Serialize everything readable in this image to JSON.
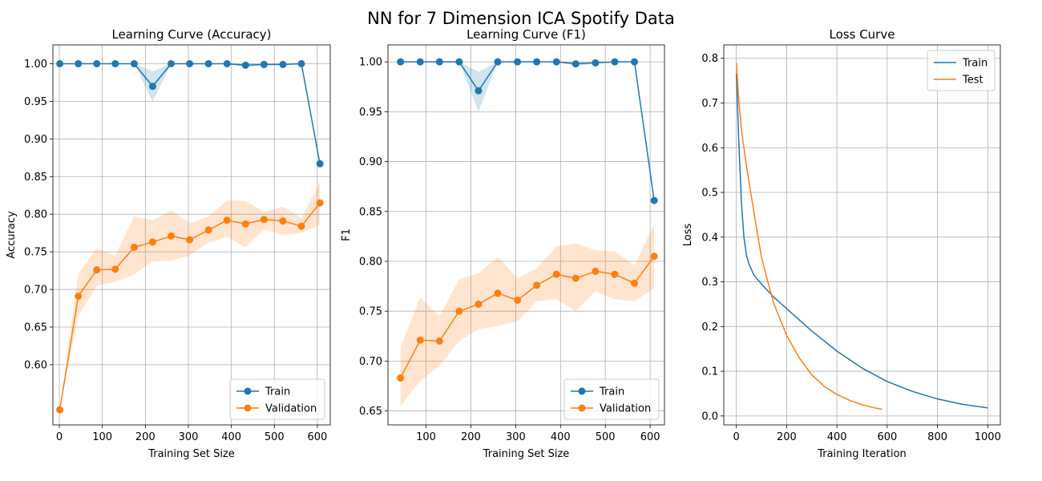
{
  "figure": {
    "suptitle": "NN for 7 Dimension ICA Spotify Data"
  },
  "colors": {
    "train": "#1f77b4",
    "validation": "#ff7f0e",
    "grid": "#b0b0b0"
  },
  "chart_data": [
    {
      "type": "line",
      "title": "Learning Curve (Accuracy)",
      "xlabel": "Training Set Size",
      "ylabel": "Accuracy",
      "xlim": [
        -15,
        630
      ],
      "ylim": [
        0.52,
        1.025
      ],
      "xticks": [
        0,
        100,
        200,
        300,
        400,
        500,
        600
      ],
      "yticks": [
        0.6,
        0.65,
        0.7,
        0.75,
        0.8,
        0.85,
        0.9,
        0.95,
        1.0
      ],
      "ytick_labels": [
        "0.60",
        "0.65",
        "0.70",
        "0.75",
        "0.80",
        "0.85",
        "0.90",
        "0.95",
        "1.00"
      ],
      "grid": true,
      "legend_position": "lower-right",
      "x": [
        1,
        44,
        87,
        130,
        174,
        217,
        260,
        303,
        347,
        390,
        433,
        476,
        520,
        563,
        606
      ],
      "series": [
        {
          "name": "Train",
          "color": "#1f77b4",
          "marker": "circle",
          "values": [
            1.0,
            1.0,
            1.0,
            1.0,
            1.0,
            0.97,
            1.0,
            1.0,
            1.0,
            1.0,
            0.998,
            0.999,
            0.999,
            1.0,
            0.867
          ],
          "lower": [
            1.0,
            1.0,
            1.0,
            1.0,
            1.0,
            0.95,
            1.0,
            1.0,
            1.0,
            1.0,
            0.996,
            0.998,
            0.998,
            1.0,
            0.867
          ],
          "upper": [
            1.0,
            1.0,
            1.0,
            1.0,
            1.0,
            0.99,
            1.0,
            1.0,
            1.0,
            1.0,
            1.0,
            1.0,
            1.0,
            1.0,
            0.867
          ]
        },
        {
          "name": "Validation",
          "color": "#ff7f0e",
          "marker": "circle",
          "values": [
            0.54,
            0.691,
            0.726,
            0.727,
            0.756,
            0.763,
            0.771,
            0.766,
            0.779,
            0.792,
            0.787,
            0.793,
            0.791,
            0.784,
            0.815
          ],
          "lower": [
            0.54,
            0.665,
            0.705,
            0.71,
            0.72,
            0.737,
            0.738,
            0.745,
            0.762,
            0.77,
            0.756,
            0.78,
            0.772,
            0.775,
            0.786
          ],
          "upper": [
            0.54,
            0.72,
            0.755,
            0.745,
            0.797,
            0.792,
            0.805,
            0.788,
            0.797,
            0.818,
            0.818,
            0.803,
            0.81,
            0.795,
            0.843
          ]
        }
      ]
    },
    {
      "type": "line",
      "title": "Learning Curve (F1)",
      "xlabel": "Training Set Size",
      "ylabel": "F1",
      "xlim": [
        15,
        632
      ],
      "ylim": [
        0.636,
        1.017
      ],
      "xticks": [
        100,
        200,
        300,
        400,
        500,
        600
      ],
      "yticks": [
        0.65,
        0.7,
        0.75,
        0.8,
        0.85,
        0.9,
        0.95,
        1.0
      ],
      "ytick_labels": [
        "0.65",
        "0.70",
        "0.75",
        "0.80",
        "0.85",
        "0.90",
        "0.95",
        "1.00"
      ],
      "grid": true,
      "legend_position": "lower-right",
      "x": [
        43,
        87,
        130,
        174,
        217,
        260,
        304,
        347,
        391,
        434,
        478,
        521,
        565,
        609
      ],
      "series": [
        {
          "name": "Train",
          "color": "#1f77b4",
          "marker": "circle",
          "values": [
            1.0,
            1.0,
            1.0,
            1.0,
            0.971,
            1.0,
            1.0,
            1.0,
            1.0,
            0.998,
            0.999,
            1.0,
            1.0,
            0.861
          ],
          "lower": [
            1.0,
            1.0,
            1.0,
            1.0,
            0.95,
            1.0,
            1.0,
            1.0,
            1.0,
            0.996,
            0.998,
            1.0,
            1.0,
            0.861
          ],
          "upper": [
            1.0,
            1.0,
            1.0,
            1.0,
            0.99,
            1.0,
            1.0,
            1.0,
            1.0,
            1.0,
            1.0,
            1.0,
            1.0,
            0.861
          ]
        },
        {
          "name": "Validation",
          "color": "#ff7f0e",
          "marker": "circle",
          "values": [
            0.683,
            0.721,
            0.72,
            0.75,
            0.757,
            0.768,
            0.761,
            0.776,
            0.787,
            0.783,
            0.79,
            0.787,
            0.778,
            0.805
          ],
          "lower": [
            0.655,
            0.68,
            0.695,
            0.72,
            0.732,
            0.735,
            0.74,
            0.76,
            0.762,
            0.75,
            0.77,
            0.762,
            0.76,
            0.773
          ],
          "upper": [
            0.714,
            0.764,
            0.745,
            0.782,
            0.788,
            0.804,
            0.783,
            0.793,
            0.815,
            0.818,
            0.811,
            0.81,
            0.796,
            0.837
          ]
        }
      ]
    },
    {
      "type": "line",
      "title": "Loss Curve",
      "xlabel": "Training Iteration",
      "ylabel": "Loss",
      "xlim": [
        -50,
        1050
      ],
      "ylim": [
        -0.02,
        0.83
      ],
      "xticks": [
        0,
        200,
        400,
        600,
        800,
        1000
      ],
      "yticks": [
        0.0,
        0.1,
        0.2,
        0.3,
        0.4,
        0.5,
        0.6,
        0.7,
        0.8
      ],
      "ytick_labels": [
        "0.0",
        "0.1",
        "0.2",
        "0.3",
        "0.4",
        "0.5",
        "0.6",
        "0.7",
        "0.8"
      ],
      "grid": true,
      "legend_position": "upper-right",
      "series": [
        {
          "name": "Train",
          "color": "#1f77b4",
          "marker": "none",
          "x": [
            0,
            10,
            20,
            30,
            40,
            50,
            70,
            100,
            150,
            200,
            300,
            400,
            500,
            600,
            700,
            800,
            900,
            1000
          ],
          "values": [
            0.765,
            0.61,
            0.48,
            0.4,
            0.36,
            0.34,
            0.315,
            0.295,
            0.265,
            0.24,
            0.19,
            0.145,
            0.107,
            0.077,
            0.055,
            0.038,
            0.026,
            0.018
          ]
        },
        {
          "name": "Test",
          "color": "#ff7f0e",
          "marker": "none",
          "x": [
            0,
            10,
            20,
            40,
            60,
            80,
            100,
            125,
            150,
            200,
            250,
            300,
            350,
            400,
            450,
            500,
            550,
            580
          ],
          "values": [
            0.79,
            0.705,
            0.64,
            0.56,
            0.49,
            0.42,
            0.355,
            0.3,
            0.25,
            0.18,
            0.13,
            0.092,
            0.066,
            0.048,
            0.035,
            0.025,
            0.018,
            0.015
          ]
        }
      ]
    }
  ]
}
